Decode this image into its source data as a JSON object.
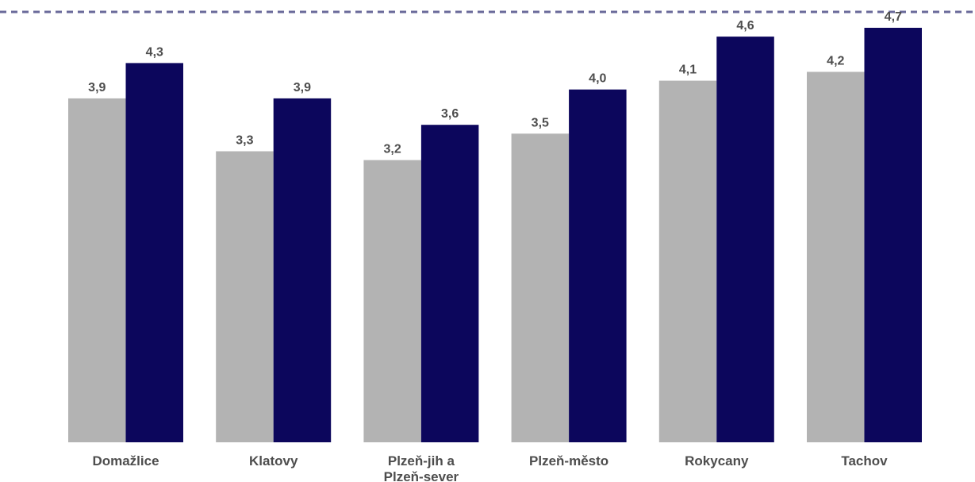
{
  "chart_data": {
    "type": "bar",
    "categories": [
      [
        "Domažlice"
      ],
      [
        "Klatovy"
      ],
      [
        "Plzeň-jih a",
        "Plzeň-sever"
      ],
      [
        "Plzeň-město"
      ],
      [
        "Rokycany"
      ],
      [
        "Tachov"
      ]
    ],
    "series": [
      {
        "color": "#b3b3b3",
        "values": [
          3.9,
          3.3,
          3.2,
          3.5,
          4.1,
          4.2
        ],
        "labels": [
          "3,9",
          "3,3",
          "3,2",
          "3,5",
          "4,1",
          "4,2"
        ]
      },
      {
        "color": "#0c065c",
        "values": [
          4.3,
          3.9,
          3.6,
          4.0,
          4.6,
          4.7
        ],
        "labels": [
          "4,3",
          "3,9",
          "3,6",
          "4,0",
          "4,6",
          "4,7"
        ]
      }
    ],
    "ylim": [
      0,
      4.7
    ],
    "reference_line": {
      "style": "dashed",
      "color": "#6a6a9a"
    },
    "grid": false,
    "legend": "none"
  }
}
